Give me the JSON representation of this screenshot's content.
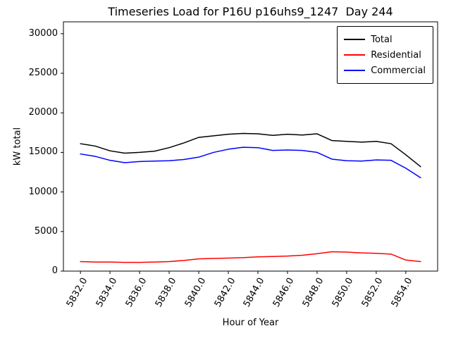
{
  "chart_data": {
    "type": "line",
    "title": "Timeseries Load for P16U p16uhs9_1247  Day 244",
    "xlabel": "Hour of Year",
    "ylabel": "kW total",
    "xlim": [
      5830.85,
      5856.15
    ],
    "ylim": [
      0,
      31500
    ],
    "grid": false,
    "legend_position": "upper right",
    "xticks": [
      5832,
      5834,
      5836,
      5838,
      5840,
      5842,
      5844,
      5846,
      5848,
      5850,
      5852,
      5854
    ],
    "xtick_labels": [
      "5832.0",
      "5834.0",
      "5836.0",
      "5838.0",
      "5840.0",
      "5842.0",
      "5844.0",
      "5846.0",
      "5848.0",
      "5850.0",
      "5852.0",
      "5854.0"
    ],
    "yticks": [
      0,
      5000,
      10000,
      15000,
      20000,
      25000,
      30000
    ],
    "ytick_labels": [
      "0",
      "5000",
      "10000",
      "15000",
      "20000",
      "25000",
      "30000"
    ],
    "x": [
      5832,
      5833,
      5834,
      5835,
      5836,
      5837,
      5838,
      5839,
      5840,
      5841,
      5842,
      5843,
      5844,
      5845,
      5846,
      5847,
      5848,
      5849,
      5850,
      5851,
      5852,
      5853,
      5854,
      5855
    ],
    "series": [
      {
        "name": "Total",
        "color": "#000000",
        "values": [
          16100,
          15800,
          15200,
          14900,
          15000,
          15150,
          15600,
          16200,
          16900,
          17100,
          17300,
          17400,
          17350,
          17150,
          17300,
          17200,
          17350,
          16500,
          16400,
          16300,
          16400,
          16100,
          14700,
          13200
        ]
      },
      {
        "name": "Residential",
        "color": "#ff0000",
        "values": [
          1200,
          1150,
          1150,
          1100,
          1100,
          1150,
          1200,
          1350,
          1550,
          1600,
          1650,
          1700,
          1800,
          1850,
          1900,
          2000,
          2200,
          2450,
          2400,
          2300,
          2250,
          2150,
          1400,
          1200
        ]
      },
      {
        "name": "Commercial",
        "color": "#0000ff",
        "values": [
          14800,
          14500,
          14000,
          13700,
          13850,
          13900,
          13950,
          14100,
          14400,
          15000,
          15400,
          15650,
          15600,
          15250,
          15300,
          15250,
          15000,
          14150,
          13950,
          13900,
          14050,
          14000,
          13000,
          11800
        ]
      }
    ]
  }
}
